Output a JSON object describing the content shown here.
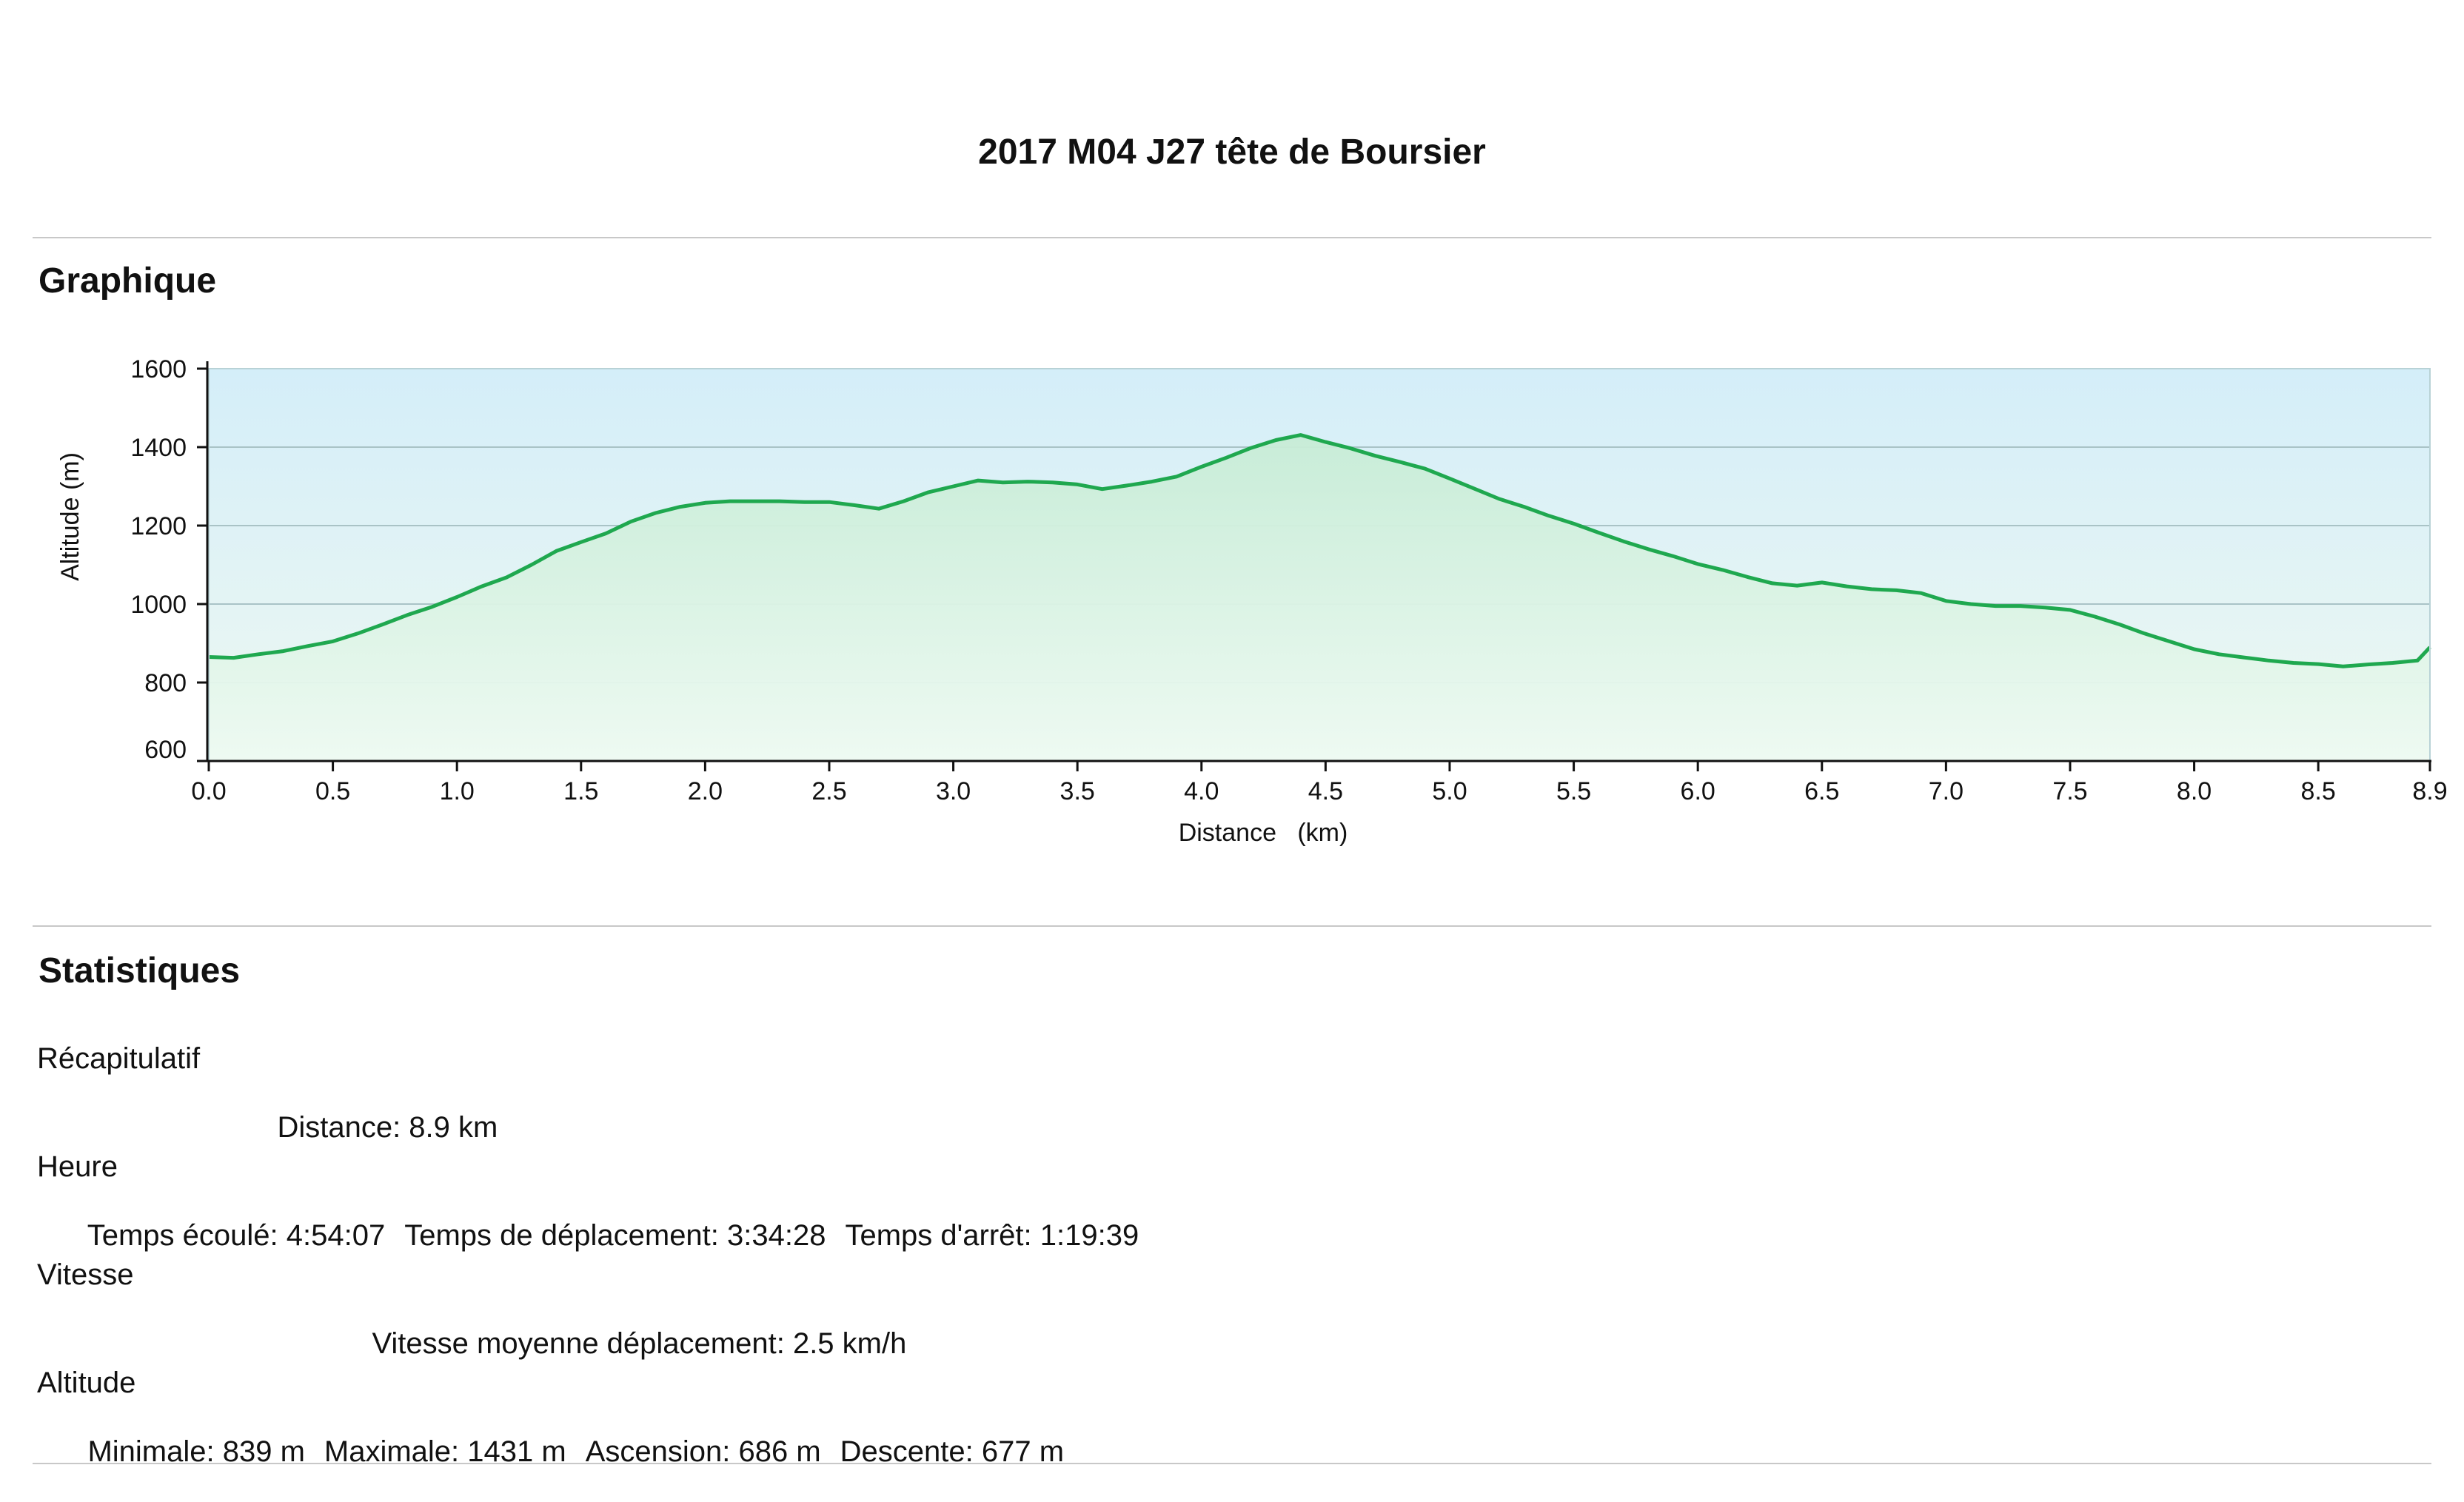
{
  "title": "2017 M04 J27 tête de Boursier",
  "sections": {
    "graph_title": "Graphique",
    "stats_title": "Statistiques"
  },
  "chart_data": {
    "type": "area",
    "xlabel": "Distance   (km)",
    "ylabel": "Altitude (m)",
    "xlim": [
      0,
      8.95
    ],
    "ylim": [
      600,
      1600
    ],
    "x_ticks": [
      "0.0",
      "0.5",
      "1.0",
      "1.5",
      "2.0",
      "2.5",
      "3.0",
      "3.5",
      "4.0",
      "4.5",
      "5.0",
      "5.5",
      "6.0",
      "6.5",
      "7.0",
      "7.5",
      "8.0",
      "8.5",
      "8.9"
    ],
    "y_ticks": [
      "600",
      "800",
      "1000",
      "1200",
      "1400",
      "1600"
    ],
    "grid": true,
    "colors": {
      "line": "#1fa84f",
      "fill_top": "#cfeeda",
      "bg_top": "#d4eef9",
      "bg_bottom": "#eef8f1"
    },
    "series": [
      {
        "x": [
          0,
          0.1,
          0.2,
          0.3,
          0.4,
          0.5,
          0.6,
          0.7,
          0.8,
          0.9,
          1.0,
          1.1,
          1.2,
          1.3,
          1.4,
          1.5,
          1.6,
          1.7,
          1.8,
          1.9,
          2.0,
          2.1,
          2.2,
          2.3,
          2.4,
          2.5,
          2.6,
          2.7,
          2.8,
          2.9,
          3.0,
          3.1,
          3.2,
          3.3,
          3.4,
          3.5,
          3.6,
          3.7,
          3.8,
          3.9,
          4.0,
          4.1,
          4.2,
          4.3,
          4.4,
          4.5,
          4.6,
          4.7,
          4.8,
          4.9,
          5.0,
          5.1,
          5.2,
          5.3,
          5.4,
          5.5,
          5.6,
          5.7,
          5.8,
          5.9,
          6.0,
          6.1,
          6.2,
          6.3,
          6.4,
          6.5,
          6.6,
          6.7,
          6.8,
          6.9,
          7.0,
          7.1,
          7.2,
          7.3,
          7.4,
          7.5,
          7.6,
          7.7,
          7.8,
          7.9,
          8.0,
          8.1,
          8.2,
          8.3,
          8.4,
          8.5,
          8.6,
          8.7,
          8.8,
          8.9,
          8.95
        ],
        "y": [
          865,
          863,
          872,
          880,
          893,
          905,
          925,
          948,
          972,
          993,
          1018,
          1045,
          1068,
          1100,
          1135,
          1158,
          1180,
          1210,
          1232,
          1248,
          1258,
          1262,
          1262,
          1262,
          1260,
          1260,
          1252,
          1243,
          1262,
          1285,
          1300,
          1315,
          1310,
          1312,
          1310,
          1305,
          1293,
          1302,
          1312,
          1325,
          1350,
          1373,
          1398,
          1418,
          1431,
          1413,
          1397,
          1378,
          1362,
          1345,
          1320,
          1294,
          1268,
          1248,
          1225,
          1205,
          1182,
          1160,
          1140,
          1122,
          1102,
          1087,
          1069,
          1053,
          1047,
          1055,
          1045,
          1038,
          1035,
          1028,
          1008,
          1000,
          995,
          995,
          991,
          985,
          968,
          948,
          925,
          905,
          885,
          872,
          864,
          856,
          850,
          847,
          841,
          846,
          850,
          856,
          890
        ]
      }
    ]
  },
  "stats": {
    "summary": {
      "label": "Récapitulatif",
      "items": [
        "Distance: 8.9 km"
      ]
    },
    "time": {
      "label": "Heure",
      "items": [
        "Temps écoulé: 4:54:07",
        "Temps de déplacement: 3:34:28",
        "Temps d'arrêt: 1:19:39"
      ]
    },
    "speed": {
      "label": "Vitesse",
      "items": [
        "Vitesse moyenne déplacement: 2.5 km/h"
      ]
    },
    "altitude": {
      "label": "Altitude",
      "items": [
        "Minimale: 839 m",
        "Maximale: 1431 m",
        "Ascension: 686 m",
        "Descente: 677 m"
      ]
    }
  }
}
